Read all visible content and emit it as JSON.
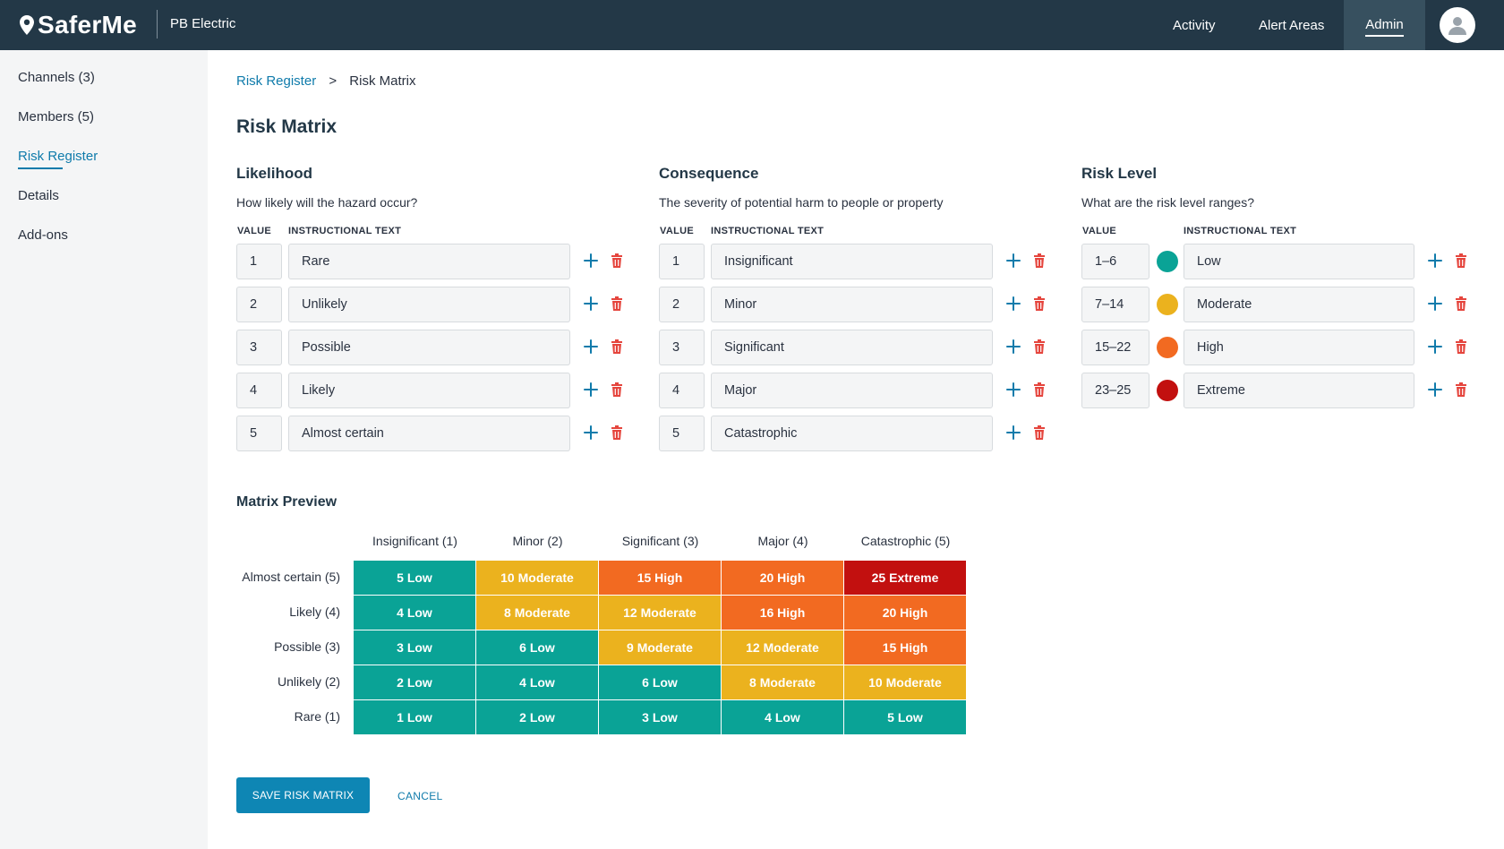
{
  "app": {
    "logo_text": "SaferMe",
    "org_name": "PB Electric"
  },
  "nav": {
    "activity": "Activity",
    "alert_areas": "Alert Areas",
    "admin": "Admin"
  },
  "sidebar": {
    "items": [
      {
        "label": "Channels (3)"
      },
      {
        "label": "Members (5)"
      },
      {
        "label": "Risk Register"
      },
      {
        "label": "Details"
      },
      {
        "label": "Add-ons"
      }
    ]
  },
  "breadcrumb": {
    "parent": "Risk Register",
    "separator": ">",
    "current": "Risk Matrix"
  },
  "page_title": "Risk Matrix",
  "colors": {
    "low": "#0aa396",
    "moderate": "#ebb21e",
    "high": "#f26a21",
    "extreme": "#c2100f",
    "accent": "#0f7bab",
    "topbar": "#233847"
  },
  "likelihood": {
    "title": "Likelihood",
    "description": "How likely will the hazard occur?",
    "col_value": "VALUE",
    "col_text": "INSTRUCTIONAL TEXT",
    "rows": [
      {
        "value": "1",
        "text": "Rare"
      },
      {
        "value": "2",
        "text": "Unlikely"
      },
      {
        "value": "3",
        "text": "Possible"
      },
      {
        "value": "4",
        "text": "Likely"
      },
      {
        "value": "5",
        "text": "Almost certain"
      }
    ]
  },
  "consequence": {
    "title": "Consequence",
    "description": "The severity of potential harm to people or property",
    "col_value": "VALUE",
    "col_text": "INSTRUCTIONAL TEXT",
    "rows": [
      {
        "value": "1",
        "text": "Insignificant"
      },
      {
        "value": "2",
        "text": "Minor"
      },
      {
        "value": "3",
        "text": "Significant"
      },
      {
        "value": "4",
        "text": "Major"
      },
      {
        "value": "5",
        "text": "Catastrophic"
      }
    ]
  },
  "risk_level": {
    "title": "Risk Level",
    "description": "What are the risk level ranges?",
    "col_value": "VALUE",
    "col_text": "INSTRUCTIONAL TEXT",
    "rows": [
      {
        "value": "1–6",
        "text": "Low",
        "color": "#0aa396"
      },
      {
        "value": "7–14",
        "text": "Moderate",
        "color": "#ebb21e"
      },
      {
        "value": "15–22",
        "text": "High",
        "color": "#f26a21"
      },
      {
        "value": "23–25",
        "text": "Extreme",
        "color": "#c2100f"
      }
    ]
  },
  "matrix": {
    "title": "Matrix Preview",
    "columns": [
      "Insignificant (1)",
      "Minor (2)",
      "Significant (3)",
      "Major (4)",
      "Catastrophic (5)"
    ],
    "rows": [
      {
        "label": "Almost certain (5)",
        "cells": [
          {
            "text": "5 Low",
            "level": "low"
          },
          {
            "text": "10 Moderate",
            "level": "moderate"
          },
          {
            "text": "15 High",
            "level": "high"
          },
          {
            "text": "20 High",
            "level": "high"
          },
          {
            "text": "25 Extreme",
            "level": "extreme"
          }
        ]
      },
      {
        "label": "Likely (4)",
        "cells": [
          {
            "text": "4 Low",
            "level": "low"
          },
          {
            "text": "8 Moderate",
            "level": "moderate"
          },
          {
            "text": "12 Moderate",
            "level": "moderate"
          },
          {
            "text": "16 High",
            "level": "high"
          },
          {
            "text": "20 High",
            "level": "high"
          }
        ]
      },
      {
        "label": "Possible (3)",
        "cells": [
          {
            "text": "3 Low",
            "level": "low"
          },
          {
            "text": "6 Low",
            "level": "low"
          },
          {
            "text": "9 Moderate",
            "level": "moderate"
          },
          {
            "text": "12 Moderate",
            "level": "moderate"
          },
          {
            "text": "15 High",
            "level": "high"
          }
        ]
      },
      {
        "label": "Unlikely (2)",
        "cells": [
          {
            "text": "2 Low",
            "level": "low"
          },
          {
            "text": "4 Low",
            "level": "low"
          },
          {
            "text": "6 Low",
            "level": "low"
          },
          {
            "text": "8 Moderate",
            "level": "moderate"
          },
          {
            "text": "10 Moderate",
            "level": "moderate"
          }
        ]
      },
      {
        "label": "Rare (1)",
        "cells": [
          {
            "text": "1 Low",
            "level": "low"
          },
          {
            "text": "2 Low",
            "level": "low"
          },
          {
            "text": "3 Low",
            "level": "low"
          },
          {
            "text": "4 Low",
            "level": "low"
          },
          {
            "text": "5 Low",
            "level": "low"
          }
        ]
      }
    ]
  },
  "actions": {
    "save_label": "SAVE RISK MATRIX",
    "cancel_label": "CANCEL"
  },
  "icons": {
    "logo": "location-pin-icon",
    "avatar": "user-icon",
    "add": "plus-icon",
    "delete": "trash-icon"
  }
}
